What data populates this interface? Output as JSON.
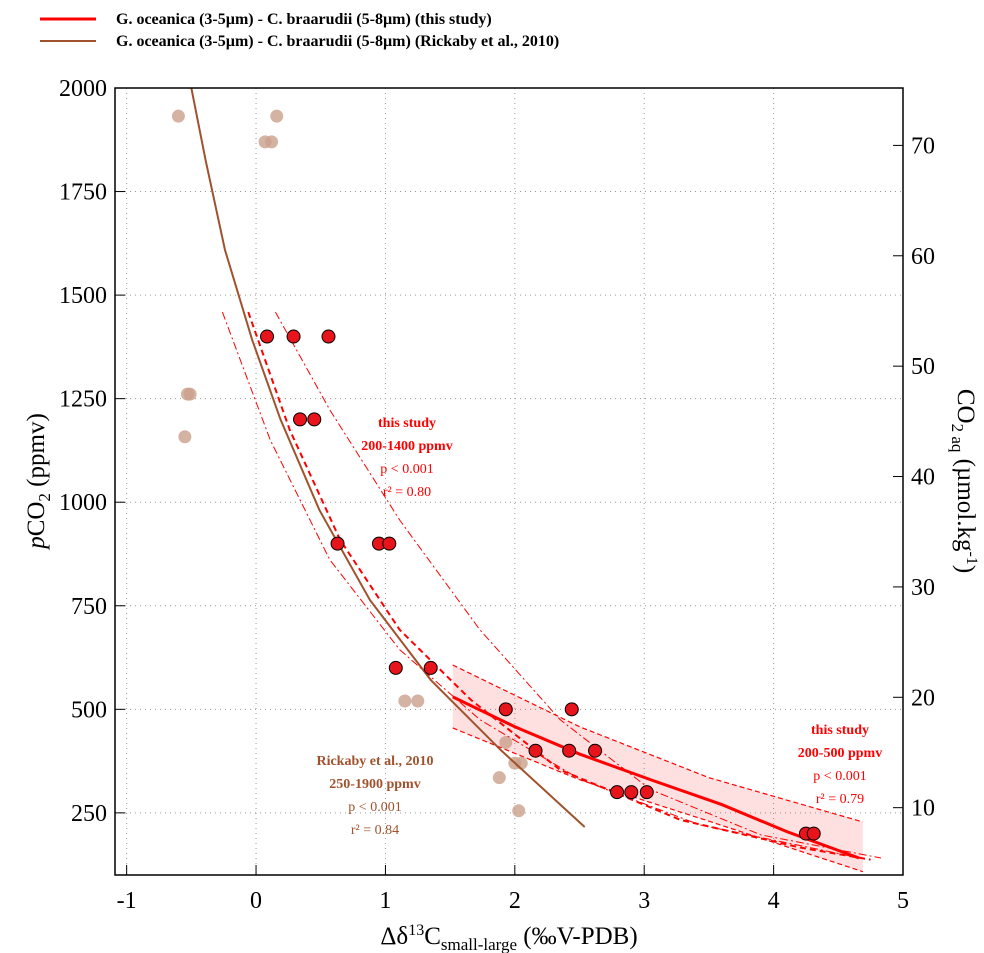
{
  "chart_data": {
    "type": "scatter",
    "xlabel_parts": [
      "Δδ",
      "13",
      "C",
      "small-large",
      " (‰V-PDB)"
    ],
    "ylabel_parts": [
      "p",
      "CO",
      "2",
      " (ppmv)"
    ],
    "y2label_parts": [
      "CO",
      "2 aq",
      " (µmol.kg",
      "-1",
      ")"
    ],
    "xlim": [
      -1.09,
      5
    ],
    "ylim": [
      100,
      2000
    ],
    "y2lim": [
      3.9,
      75.2
    ],
    "xticks": [
      -1,
      0,
      1,
      2,
      3,
      4,
      5
    ],
    "yticks": [
      250,
      500,
      750,
      1000,
      1250,
      1500,
      1750,
      2000
    ],
    "y2ticks": [
      10,
      20,
      30,
      40,
      50,
      60,
      70
    ],
    "grid": true,
    "series": [
      {
        "name": "G. oceanica (3-5µm) - C. braarudii (5-8µm) (this study)",
        "kind": "line",
        "color": "#ff0000",
        "width": 3,
        "x": [
          1.52,
          2.0,
          2.5,
          3.05,
          3.6,
          4.1,
          4.66
        ],
        "values": [
          530,
          458,
          392,
          330,
          270,
          205,
          141
        ]
      },
      {
        "name": "G. oceanica (3-5µm) - C. braarudii (5-8µm) (Rickaby et al., 2010)",
        "kind": "line",
        "color": "#a0522d",
        "width": 2,
        "x": [
          -0.5,
          -0.39,
          -0.24,
          -0.03,
          0.19,
          0.49,
          0.88,
          1.35,
          1.89,
          2.54
        ],
        "values": [
          2000,
          1826,
          1609,
          1392,
          1199,
          981,
          764,
          571,
          402,
          216
        ]
      },
      {
        "kind": "points",
        "color": "#e8141b",
        "edge": "#000000",
        "x": [
          0.085,
          0.29,
          0.56,
          0.34,
          0.45,
          0.63,
          0.95,
          1.03,
          1.08,
          1.35,
          1.93,
          2.44,
          2.16,
          2.42,
          2.62,
          2.79,
          2.9,
          3.02,
          4.25,
          4.31
        ],
        "values": [
          1400,
          1400,
          1400,
          1200,
          1200,
          900,
          900,
          900,
          600,
          600,
          500,
          500,
          400,
          400,
          400,
          300,
          300,
          300,
          200,
          200
        ]
      },
      {
        "kind": "points",
        "color": "#c9a08c",
        "x": [
          -0.6,
          0.16,
          0.07,
          0.12,
          -0.53,
          -0.51,
          -0.55,
          1.15,
          1.25,
          1.93,
          1.88,
          2.0,
          2.05,
          2.03
        ],
        "values": [
          1932,
          1932,
          1870,
          1870,
          1261,
          1261,
          1158,
          520,
          520,
          420,
          335,
          370,
          370,
          255
        ]
      },
      {
        "kind": "line",
        "color": "#ff0000",
        "width": 2,
        "dash": "6,4",
        "x": [
          -0.06,
          0.26,
          0.65,
          1.11,
          1.66,
          2.35,
          3.28,
          4.21,
          4.75
        ],
        "values": [
          1459,
          1175,
          909,
          692,
          523,
          354,
          233,
          166,
          137
        ]
      },
      {
        "kind": "line",
        "color": "#ff0000",
        "width": 1,
        "dash": "8,3,2,3",
        "x": [
          0.15,
          0.57,
          1.11,
          1.73,
          2.35,
          3.05,
          3.9,
          4.83
        ],
        "values": [
          1459,
          1223,
          957,
          692,
          475,
          306,
          197,
          141
        ]
      },
      {
        "kind": "line",
        "color": "#ff0000",
        "width": 1,
        "dash": "8,3,2,3",
        "x": [
          -0.26,
          0.11,
          0.57,
          1.11,
          1.73,
          2.51,
          3.43,
          4.67
        ],
        "values": [
          1459,
          1150,
          861,
          644,
          475,
          330,
          221,
          141
        ]
      },
      {
        "kind": "band",
        "color": "#ff0000",
        "x": [
          1.52,
          2.5,
          3.5,
          4.69
        ],
        "upper": [
          607,
          458,
          335,
          228
        ],
        "lower": [
          455,
          330,
          230,
          108
        ]
      }
    ],
    "annotations": [
      {
        "color": "#ff0000",
        "lines": [
          "this study",
          "200-1400 ppmv",
          "p < 0.001",
          "r² = 0.80"
        ]
      },
      {
        "color": "#a0522d",
        "lines": [
          "Rickaby et al., 2010",
          "250-1900 ppmv",
          "p < 0.001",
          "r² = 0.84"
        ]
      },
      {
        "color": "#ff0000",
        "lines": [
          "this study",
          "200-500 ppmv",
          "p < 0.001",
          "r² = 0.79"
        ]
      }
    ]
  }
}
